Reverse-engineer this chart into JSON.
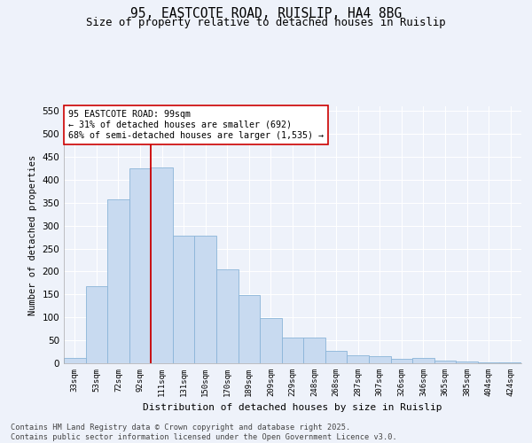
{
  "title_line1": "95, EASTCOTE ROAD, RUISLIP, HA4 8BG",
  "title_line2": "Size of property relative to detached houses in Ruislip",
  "xlabel": "Distribution of detached houses by size in Ruislip",
  "ylabel": "Number of detached properties",
  "bar_color": "#c8daf0",
  "bar_edge_color": "#8ab4d8",
  "vline_color": "#cc0000",
  "annotation_text": "95 EASTCOTE ROAD: 99sqm\n← 31% of detached houses are smaller (692)\n68% of semi-detached houses are larger (1,535) →",
  "annotation_box_color": "#ffffff",
  "annotation_box_edge": "#cc0000",
  "categories": [
    "33sqm",
    "53sqm",
    "72sqm",
    "92sqm",
    "111sqm",
    "131sqm",
    "150sqm",
    "170sqm",
    "189sqm",
    "209sqm",
    "229sqm",
    "248sqm",
    "268sqm",
    "287sqm",
    "307sqm",
    "326sqm",
    "346sqm",
    "365sqm",
    "385sqm",
    "404sqm",
    "424sqm"
  ],
  "values": [
    12,
    168,
    357,
    425,
    427,
    278,
    278,
    204,
    149,
    99,
    56,
    56,
    27,
    18,
    15,
    10,
    12,
    5,
    4,
    2,
    2
  ],
  "ylim": [
    0,
    560
  ],
  "yticks": [
    0,
    50,
    100,
    150,
    200,
    250,
    300,
    350,
    400,
    450,
    500,
    550
  ],
  "background_color": "#eef2fa",
  "grid_color": "#ffffff",
  "footer_line1": "Contains HM Land Registry data © Crown copyright and database right 2025.",
  "footer_line2": "Contains public sector information licensed under the Open Government Licence v3.0."
}
